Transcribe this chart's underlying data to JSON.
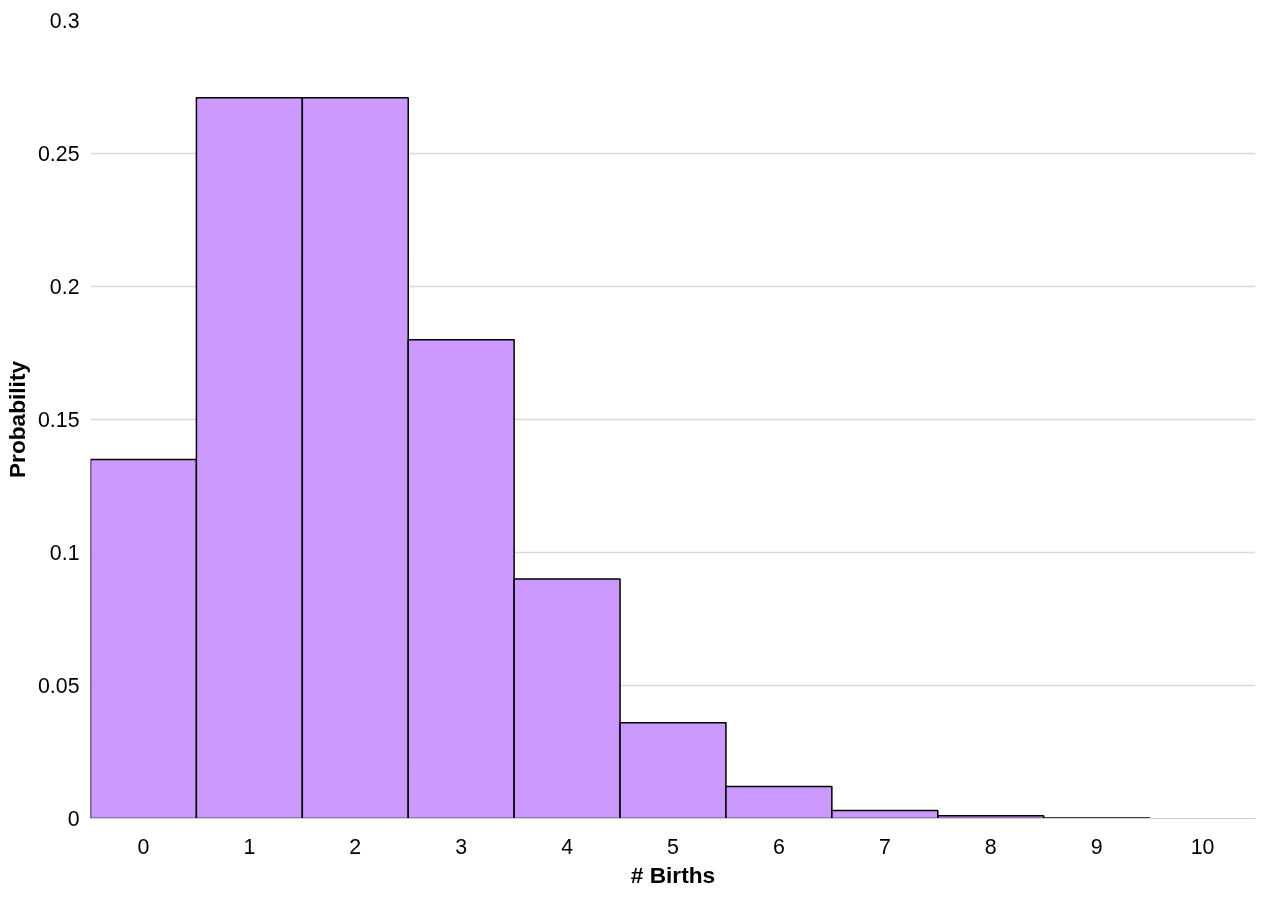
{
  "chart_data": {
    "type": "bar",
    "xlabel": "# Births",
    "ylabel": "Probability",
    "categories": [
      "0",
      "1",
      "2",
      "3",
      "4",
      "5",
      "6",
      "7",
      "8",
      "9",
      "10"
    ],
    "values": [
      0.135,
      0.271,
      0.271,
      0.18,
      0.09,
      0.036,
      0.012,
      0.003,
      0.001,
      0.0002,
      0
    ],
    "color": "#cc99ff",
    "ylim": [
      0,
      0.3
    ],
    "yticks": [
      0,
      0.05,
      0.1,
      0.15,
      0.2,
      0.25,
      0.3
    ],
    "grid": "y"
  }
}
